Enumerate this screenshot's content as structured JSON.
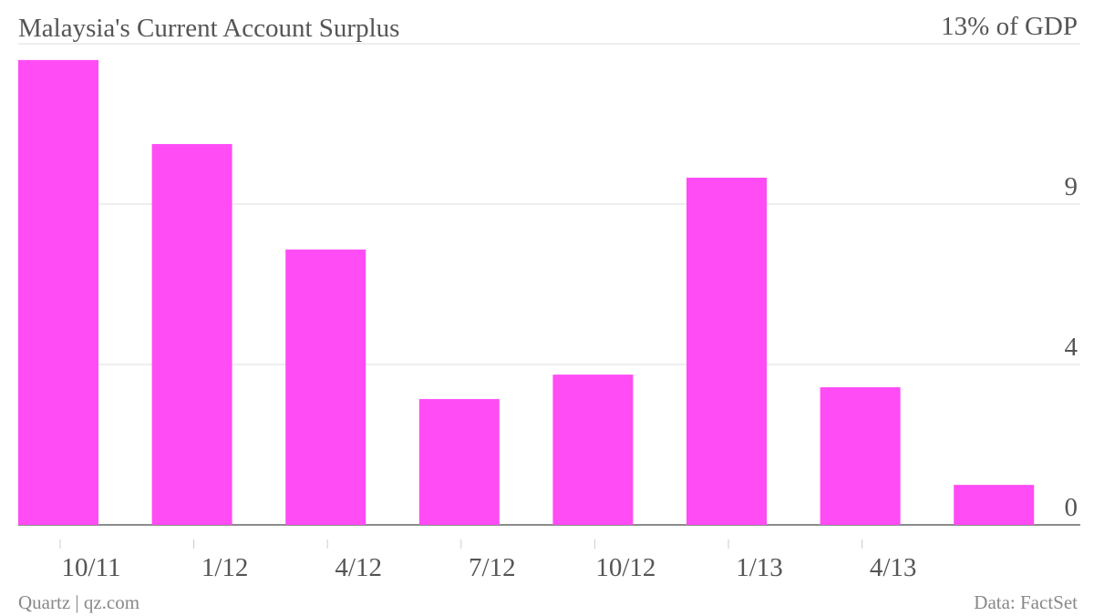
{
  "chart_data": {
    "type": "bar",
    "title": "Malaysia's Current Account Surplus",
    "categories": [
      "10/11",
      "1/12",
      "4/12",
      "7/12",
      "10/12",
      "1/13",
      "4/13",
      null
    ],
    "values": [
      12.56,
      10.29,
      7.44,
      3.4,
      4.06,
      9.38,
      3.72,
      1.08
    ],
    "color": "#ff4cf5",
    "ylim": [
      0,
      13
    ],
    "yticks": [
      0,
      {
        "value": 4.333,
        "label": "4"
      },
      {
        "value": 8.667,
        "label": "9"
      },
      {
        "value": 13,
        "label": "13% of GDP"
      }
    ],
    "grid": true,
    "source": "Data: FactSet",
    "credit": "Quartz | qz.com"
  }
}
